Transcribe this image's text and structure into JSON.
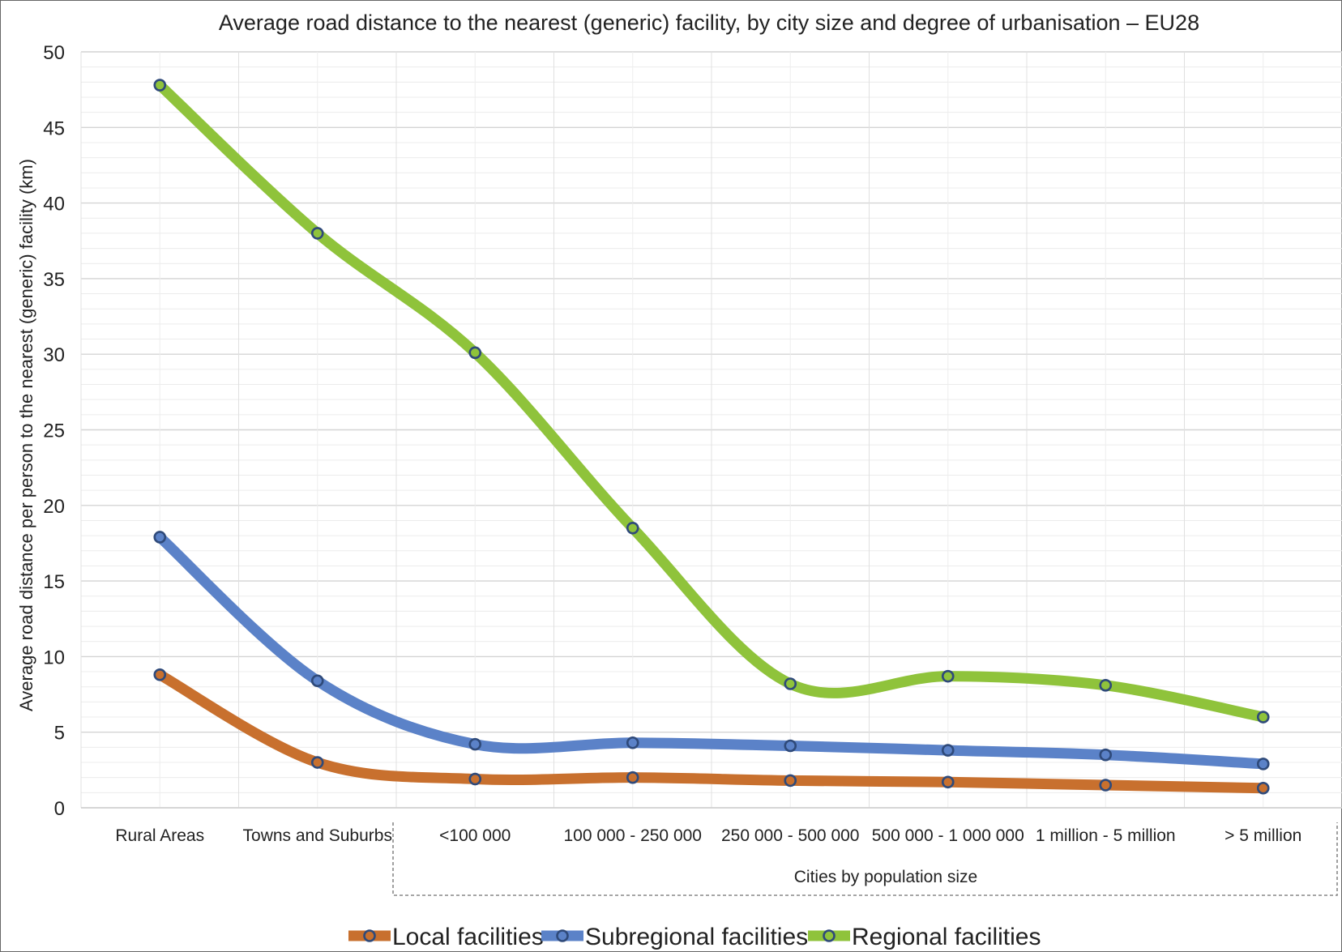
{
  "chart_data": {
    "type": "line",
    "title": "Average road distance to the nearest (generic) facility, by city size and degree of urbanisation – EU28",
    "ylabel": "Average road distance per person to the nearest (generic) facility (km)",
    "xlabel": "",
    "group_label": "Cities by population size",
    "categories": [
      "Rural Areas",
      "Towns and Suburbs",
      "<100 000",
      "100 000 - 250 000",
      "250 000 - 500 000",
      "500 000 - 1 000 000",
      "1 million - 5 million",
      "> 5 million"
    ],
    "ylim": [
      0,
      50
    ],
    "yticks": [
      0,
      5,
      10,
      15,
      20,
      25,
      30,
      35,
      40,
      45,
      50
    ],
    "grid": true,
    "legend_position": "bottom",
    "series": [
      {
        "name": "Local facilities",
        "color": "#c8702e",
        "values": [
          8.8,
          3.0,
          1.9,
          2.0,
          1.8,
          1.7,
          1.5,
          1.3
        ]
      },
      {
        "name": "Subregional facilities",
        "color": "#5b82c8",
        "values": [
          17.9,
          8.4,
          4.2,
          4.3,
          4.1,
          3.8,
          3.5,
          2.9
        ]
      },
      {
        "name": "Regional facilities",
        "color": "#8fc33b",
        "values": [
          47.8,
          38.0,
          30.1,
          18.5,
          8.2,
          8.7,
          8.1,
          6.0
        ]
      }
    ]
  }
}
